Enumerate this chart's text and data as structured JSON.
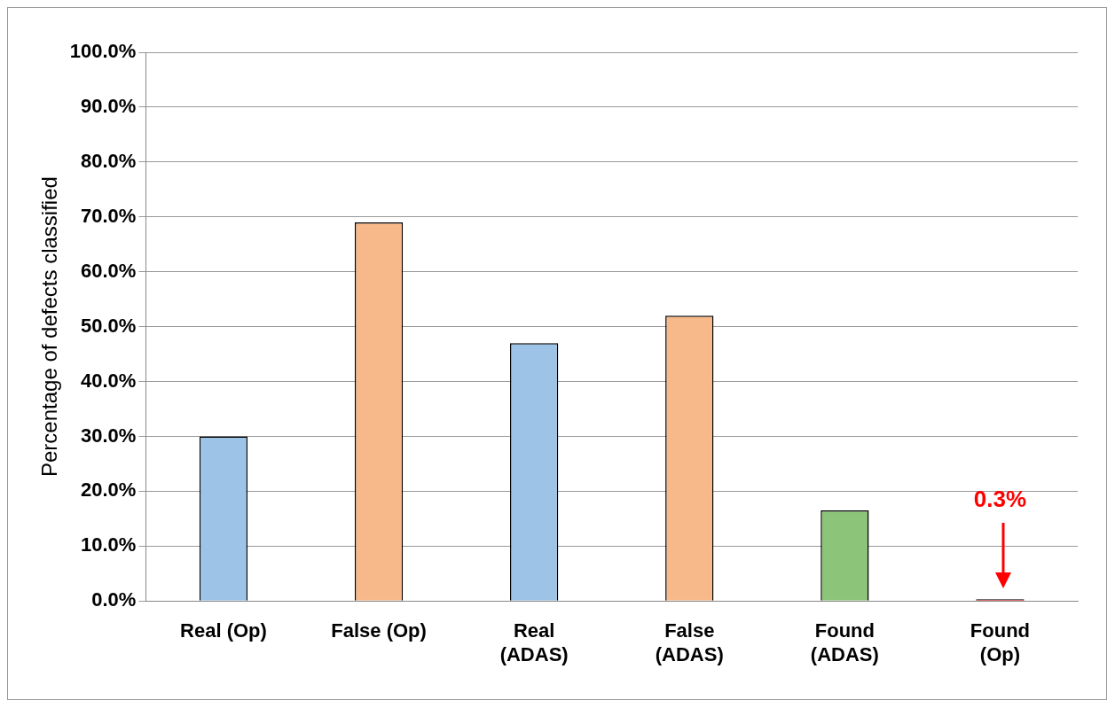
{
  "chart_data": {
    "type": "bar",
    "ylabel": "Percentage of defects classified",
    "categories": [
      "Real (Op)",
      "False (Op)",
      "Real\n(ADAS)",
      "False\n(ADAS)",
      "Found\n(ADAS)",
      "Found\n(Op)"
    ],
    "values": [
      30,
      69,
      47,
      52,
      16.5,
      0.3
    ],
    "colors": [
      "#9dc3e6",
      "#f8b98a",
      "#9dc3e6",
      "#f8b98a",
      "#8cc57a",
      "#c00000"
    ],
    "ylim": [
      0,
      100
    ],
    "yticks": [
      {
        "value": 0,
        "label": "0.0%"
      },
      {
        "value": 10,
        "label": "10.0%"
      },
      {
        "value": 20,
        "label": "20.0%"
      },
      {
        "value": 30,
        "label": "30.0%"
      },
      {
        "value": 40,
        "label": "40.0%"
      },
      {
        "value": 50,
        "label": "50.0%"
      },
      {
        "value": 60,
        "label": "60.0%"
      },
      {
        "value": 70,
        "label": "70.0%"
      },
      {
        "value": 80,
        "label": "80.0%"
      },
      {
        "value": 90,
        "label": "90.0%"
      },
      {
        "value": 100,
        "label": "100.0%"
      }
    ],
    "grid": "y",
    "legend": false,
    "annotations": [
      "0.3%"
    ]
  }
}
